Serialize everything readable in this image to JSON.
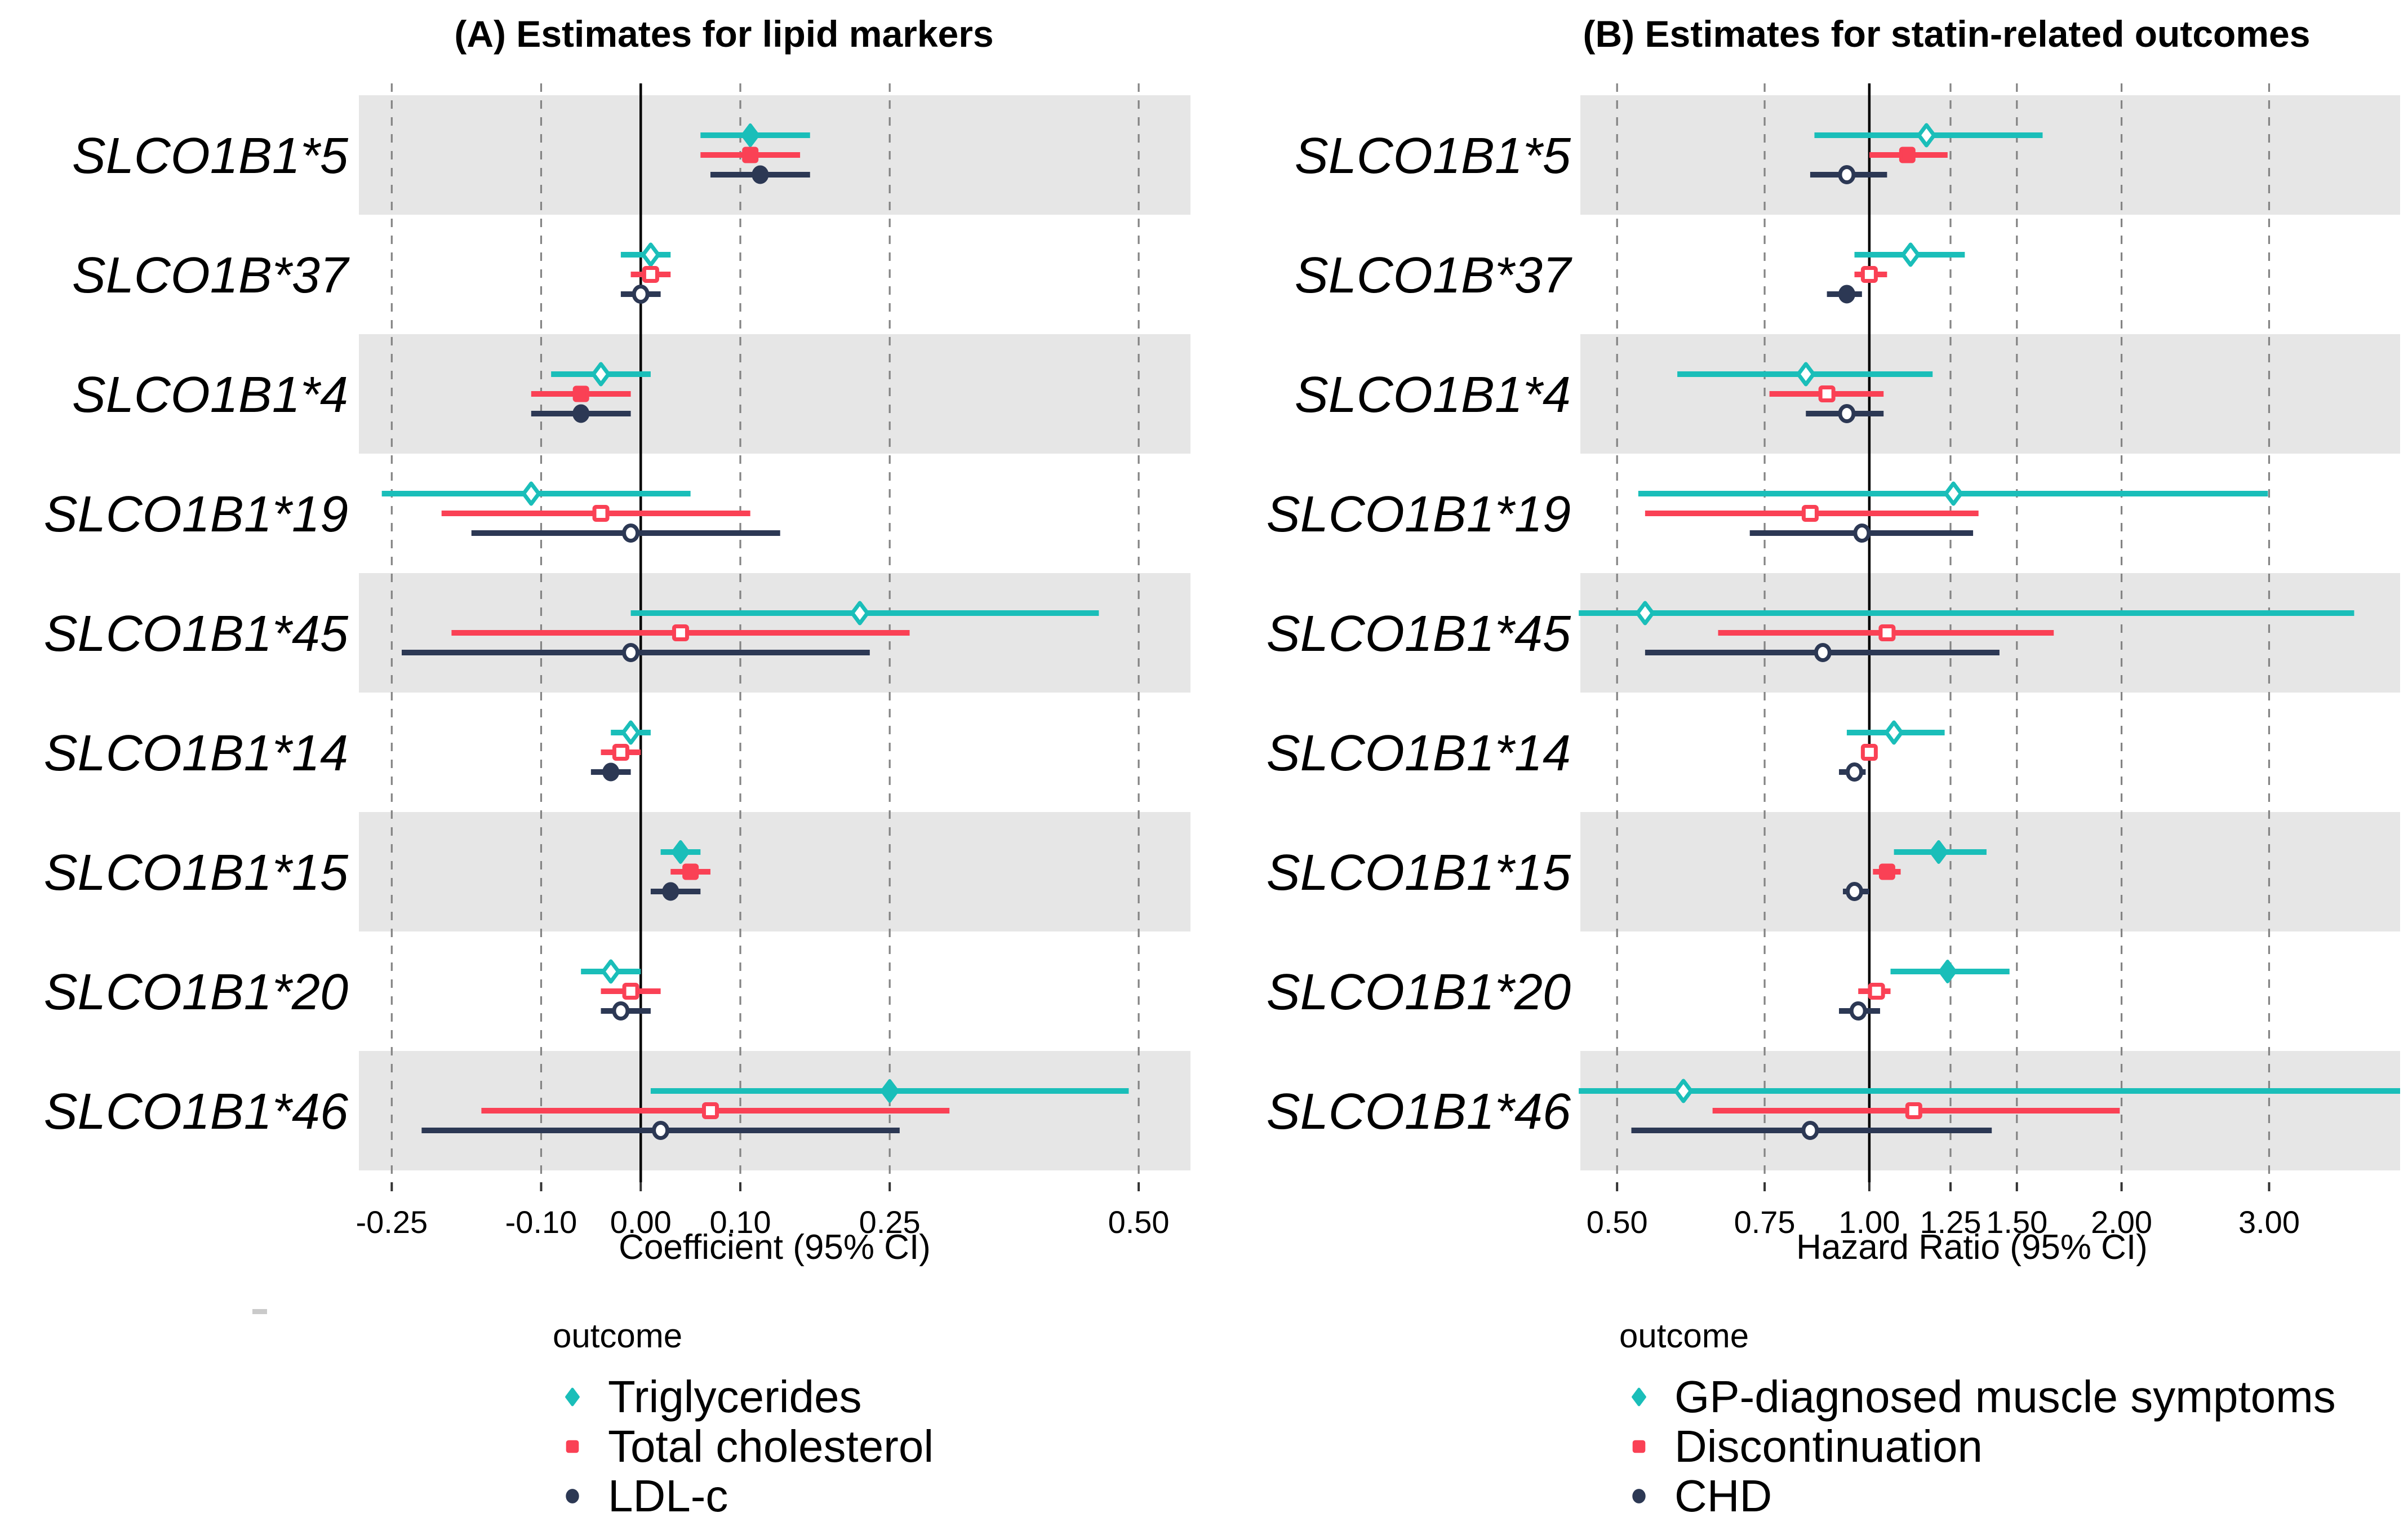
{
  "figure": {
    "colors": {
      "teal": "#1ABEB9",
      "red": "#FA4155",
      "navy": "#2C3854",
      "band": "#E6E6E6",
      "grid": "#848484",
      "ref_line": "#000000",
      "text": "#000000"
    },
    "chart_data": [
      {
        "type": "scatter",
        "variant": "forest-plot",
        "panel": "A",
        "title": "(A) Estimates for lipid markers",
        "xlabel": "Coefficient (95% CI)",
        "scale": "linear",
        "xlim": [
          -0.283,
          0.552
        ],
        "grid": "dashed-vertical",
        "reference_value": 0,
        "ticks": [
          {
            "value": -0.25,
            "label": "-0.25"
          },
          {
            "value": -0.1,
            "label": "-0.10"
          },
          {
            "value": 0.0,
            "label": "0.00",
            "ref": true
          },
          {
            "value": 0.1,
            "label": "0.10"
          },
          {
            "value": 0.25,
            "label": "0.25"
          },
          {
            "value": 0.5,
            "label": "0.50"
          }
        ],
        "categories": [
          "SLCO1B1*5",
          "SLCO1B*37",
          "SLCO1B1*4",
          "SLCO1B1*19",
          "SLCO1B1*45",
          "SLCO1B1*14",
          "SLCO1B1*15",
          "SLCO1B1*20",
          "SLCO1B1*46"
        ],
        "legend_title": "outcome",
        "legend_position": "bottom",
        "series": [
          {
            "name": "Triglycerides",
            "marker": "diamond",
            "color": "#1ABEB9",
            "points": [
              {
                "est": 0.11,
                "lo": 0.06,
                "hi": 0.17,
                "filled": true
              },
              {
                "est": 0.01,
                "lo": -0.02,
                "hi": 0.03,
                "filled": false
              },
              {
                "est": -0.04,
                "lo": -0.09,
                "hi": 0.01,
                "filled": false
              },
              {
                "est": -0.11,
                "lo": -0.26,
                "hi": 0.05,
                "filled": false
              },
              {
                "est": 0.22,
                "lo": -0.01,
                "hi": 0.46,
                "filled": false
              },
              {
                "est": -0.01,
                "lo": -0.03,
                "hi": 0.01,
                "filled": false
              },
              {
                "est": 0.04,
                "lo": 0.02,
                "hi": 0.06,
                "filled": true
              },
              {
                "est": -0.03,
                "lo": -0.06,
                "hi": 0.0,
                "filled": false
              },
              {
                "est": 0.25,
                "lo": 0.01,
                "hi": 0.49,
                "filled": true
              }
            ]
          },
          {
            "name": "Total cholesterol",
            "marker": "square",
            "color": "#FA4155",
            "points": [
              {
                "est": 0.11,
                "lo": 0.06,
                "hi": 0.16,
                "filled": true
              },
              {
                "est": 0.01,
                "lo": -0.01,
                "hi": 0.03,
                "filled": false
              },
              {
                "est": -0.06,
                "lo": -0.11,
                "hi": -0.01,
                "filled": true
              },
              {
                "est": -0.04,
                "lo": -0.2,
                "hi": 0.11,
                "filled": false
              },
              {
                "est": 0.04,
                "lo": -0.19,
                "hi": 0.27,
                "filled": false
              },
              {
                "est": -0.02,
                "lo": -0.04,
                "hi": 0.0,
                "filled": false
              },
              {
                "est": 0.05,
                "lo": 0.03,
                "hi": 0.07,
                "filled": true
              },
              {
                "est": -0.01,
                "lo": -0.04,
                "hi": 0.02,
                "filled": false
              },
              {
                "est": 0.07,
                "lo": -0.16,
                "hi": 0.31,
                "filled": false
              }
            ]
          },
          {
            "name": "LDL-c",
            "marker": "circle",
            "color": "#2C3854",
            "points": [
              {
                "est": 0.12,
                "lo": 0.07,
                "hi": 0.17,
                "filled": true
              },
              {
                "est": 0.0,
                "lo": -0.02,
                "hi": 0.02,
                "filled": false
              },
              {
                "est": -0.06,
                "lo": -0.11,
                "hi": -0.01,
                "filled": true
              },
              {
                "est": -0.01,
                "lo": -0.17,
                "hi": 0.14,
                "filled": false
              },
              {
                "est": -0.01,
                "lo": -0.24,
                "hi": 0.23,
                "filled": false
              },
              {
                "est": -0.03,
                "lo": -0.05,
                "hi": -0.01,
                "filled": true
              },
              {
                "est": 0.03,
                "lo": 0.01,
                "hi": 0.06,
                "filled": true
              },
              {
                "est": -0.02,
                "lo": -0.04,
                "hi": 0.01,
                "filled": false
              },
              {
                "est": 0.02,
                "lo": -0.22,
                "hi": 0.26,
                "filled": false
              }
            ]
          }
        ]
      },
      {
        "type": "scatter",
        "variant": "forest-plot",
        "panel": "B",
        "title": "(B) Estimates for statin-related outcomes",
        "xlabel": "Hazard Ratio (95% CI)",
        "scale": "log",
        "xlim": [
          0.452,
          4.3
        ],
        "grid": "dashed-vertical",
        "reference_value": 1,
        "ticks": [
          {
            "value": 0.5,
            "label": "0.50"
          },
          {
            "value": 0.75,
            "label": "0.75"
          },
          {
            "value": 1.0,
            "label": "1.00",
            "ref": true
          },
          {
            "value": 1.25,
            "label": "1.25"
          },
          {
            "value": 1.5,
            "label": "1.50"
          },
          {
            "value": 2.0,
            "label": "2.00"
          },
          {
            "value": 3.0,
            "label": "3.00"
          }
        ],
        "categories": [
          "SLCO1B1*5",
          "SLCO1B*37",
          "SLCO1B1*4",
          "SLCO1B1*19",
          "SLCO1B1*45",
          "SLCO1B1*14",
          "SLCO1B1*15",
          "SLCO1B1*20",
          "SLCO1B1*46"
        ],
        "legend_title": "outcome",
        "legend_position": "bottom",
        "series": [
          {
            "name": "GP-diagnosed muscle symptoms",
            "marker": "diamond",
            "color": "#1ABEB9",
            "points": [
              {
                "est": 1.17,
                "lo": 0.86,
                "hi": 1.61,
                "filled": false
              },
              {
                "est": 1.12,
                "lo": 0.96,
                "hi": 1.3,
                "filled": false
              },
              {
                "est": 0.84,
                "lo": 0.59,
                "hi": 1.19,
                "filled": false
              },
              {
                "est": 1.26,
                "lo": 0.53,
                "hi": 2.99,
                "filled": false
              },
              {
                "est": 0.54,
                "lo": 0.45,
                "hi": 3.79,
                "filled": false
              },
              {
                "est": 1.07,
                "lo": 0.94,
                "hi": 1.23,
                "filled": false
              },
              {
                "est": 1.21,
                "lo": 1.07,
                "hi": 1.38,
                "filled": true
              },
              {
                "est": 1.24,
                "lo": 1.06,
                "hi": 1.47,
                "filled": true
              },
              {
                "est": 0.6,
                "lo": 0.45,
                "hi": 4.3,
                "filled": false
              }
            ]
          },
          {
            "name": "Discontinuation",
            "marker": "square",
            "color": "#FA4155",
            "points": [
              {
                "est": 1.11,
                "lo": 1.0,
                "hi": 1.24,
                "filled": true
              },
              {
                "est": 1.0,
                "lo": 0.96,
                "hi": 1.05,
                "filled": false
              },
              {
                "est": 0.89,
                "lo": 0.76,
                "hi": 1.04,
                "filled": false
              },
              {
                "est": 0.85,
                "lo": 0.54,
                "hi": 1.35,
                "filled": false
              },
              {
                "est": 1.05,
                "lo": 0.66,
                "hi": 1.66,
                "filled": false
              },
              {
                "est": 1.0,
                "lo": 0.98,
                "hi": 1.02,
                "filled": false
              },
              {
                "est": 1.05,
                "lo": 1.01,
                "hi": 1.09,
                "filled": true
              },
              {
                "est": 1.02,
                "lo": 0.97,
                "hi": 1.06,
                "filled": false
              },
              {
                "est": 1.13,
                "lo": 0.65,
                "hi": 1.99,
                "filled": false
              }
            ]
          },
          {
            "name": "CHD",
            "marker": "circle",
            "color": "#2C3854",
            "points": [
              {
                "est": 0.94,
                "lo": 0.85,
                "hi": 1.05,
                "filled": false
              },
              {
                "est": 0.94,
                "lo": 0.89,
                "hi": 0.98,
                "filled": true
              },
              {
                "est": 0.94,
                "lo": 0.84,
                "hi": 1.04,
                "filled": false
              },
              {
                "est": 0.98,
                "lo": 0.72,
                "hi": 1.33,
                "filled": false
              },
              {
                "est": 0.88,
                "lo": 0.54,
                "hi": 1.43,
                "filled": false
              },
              {
                "est": 0.96,
                "lo": 0.92,
                "hi": 0.99,
                "filled": false
              },
              {
                "est": 0.96,
                "lo": 0.93,
                "hi": 1.0,
                "filled": false
              },
              {
                "est": 0.97,
                "lo": 0.92,
                "hi": 1.03,
                "filled": false
              },
              {
                "est": 0.85,
                "lo": 0.52,
                "hi": 1.4,
                "filled": false
              }
            ]
          }
        ]
      }
    ]
  }
}
